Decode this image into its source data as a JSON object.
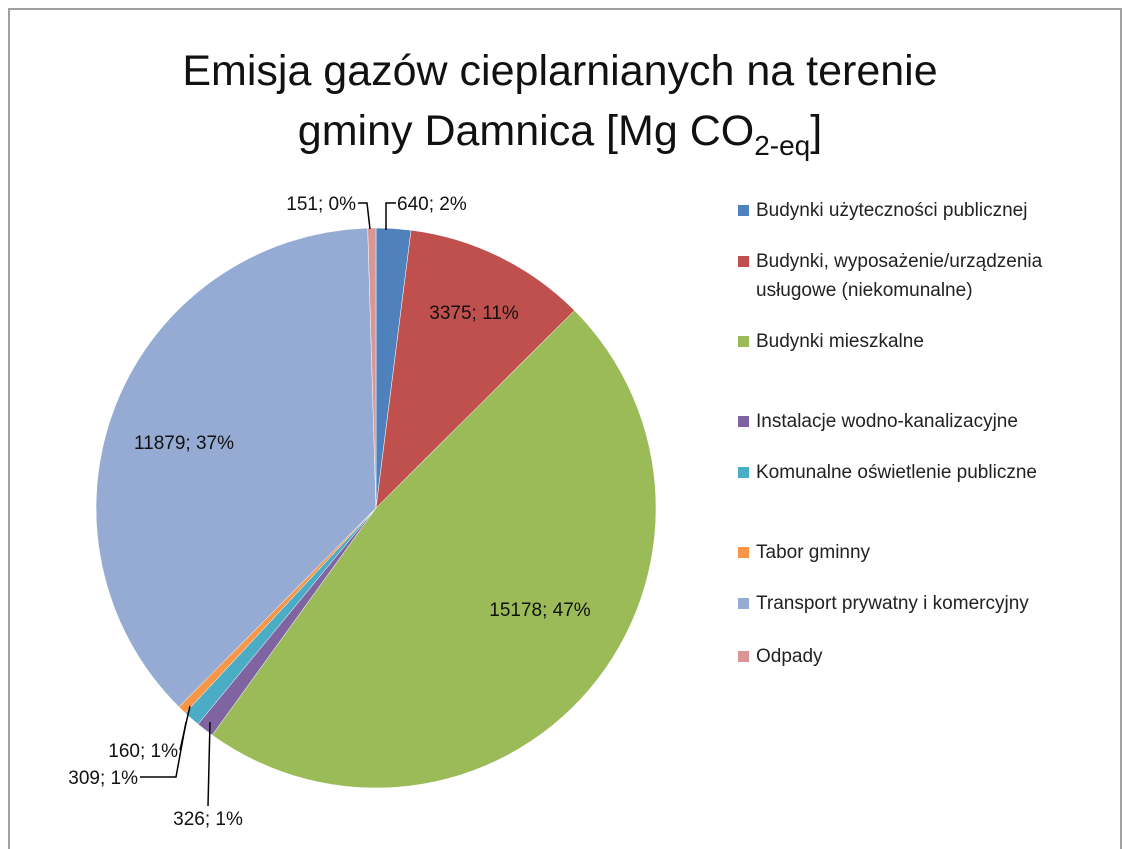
{
  "chart_data": {
    "type": "pie",
    "title": [
      "Emisja gazów cieplarnianych na terenie",
      "gminy Damnica [Mg CO",
      "2-eq",
      "]"
    ],
    "categories": [
      "Budynki użyteczności publicznej",
      "Budynki, wyposażenie/urządzenia usługowe (niekomunalne)",
      "Budynki mieszkalne",
      "Instalacje wodno-kanalizacyjne",
      "Komunalne oświetlenie publiczne",
      "Tabor gminny",
      "Transport prywatny i komercyjny",
      "Odpady"
    ],
    "values": [
      640,
      3375,
      15178,
      326,
      309,
      160,
      11879,
      151
    ],
    "value_labels": [
      "640; 2%",
      "3375; 11%",
      "15178; 47%",
      "326; 1%",
      "309; 1%",
      "160; 1%",
      "11879; 37%",
      "151; 0%"
    ],
    "colors": [
      "#4f81bd",
      "#c0504d",
      "#9bbb59",
      "#8064a2",
      "#4bacc6",
      "#f79646",
      "#95abd4",
      "#d99694"
    ],
    "legend": "right"
  }
}
